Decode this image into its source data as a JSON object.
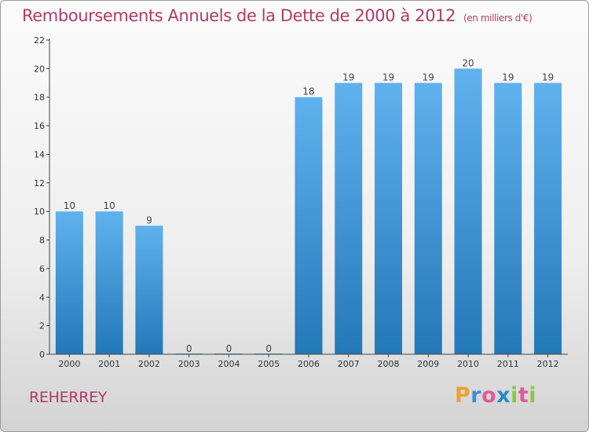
{
  "title": "Remboursements Annuels de la Dette de 2000 à 2012",
  "unit": "(en milliers d'€)",
  "commune": "REHERREY",
  "logo": {
    "text": "Proxiti",
    "letters": [
      "P",
      "r",
      "o",
      "x",
      "i",
      "t",
      "i"
    ],
    "colors": [
      "#f0a030",
      "#3a8fd8",
      "#e05a9a",
      "#2a8ac8",
      "#8cc63e",
      "#e05a9a",
      "#8cc63e"
    ]
  },
  "colors": {
    "bar_top": "#5fb2ee",
    "bar_bottom": "#2378b8",
    "axis": "#444444",
    "grid": "#dddddd",
    "accent": "#b03a6a"
  },
  "chart_data": {
    "type": "bar",
    "title": "Remboursements Annuels de la Dette de 2000 à 2012",
    "ylabel": "en milliers d'€",
    "xlabel": "",
    "categories": [
      "2000",
      "2001",
      "2002",
      "2003",
      "2004",
      "2005",
      "2006",
      "2007",
      "2008",
      "2009",
      "2010",
      "2011",
      "2012"
    ],
    "values": [
      10,
      10,
      9,
      0,
      0,
      0,
      18,
      19,
      19,
      19,
      20,
      19,
      19
    ],
    "data_labels": [
      "10",
      "10",
      "9",
      "0",
      "0",
      "0",
      "18",
      "19",
      "19",
      "19",
      "20",
      "19",
      "19"
    ],
    "ylim": [
      0,
      22
    ],
    "yticks": [
      0,
      2,
      4,
      6,
      8,
      10,
      12,
      14,
      16,
      18,
      20,
      22
    ],
    "ytick_labels": [
      "0",
      "2",
      "4",
      "6",
      "8",
      "10",
      "12",
      "14",
      "16",
      "18",
      "20",
      "22"
    ],
    "grid": false
  }
}
